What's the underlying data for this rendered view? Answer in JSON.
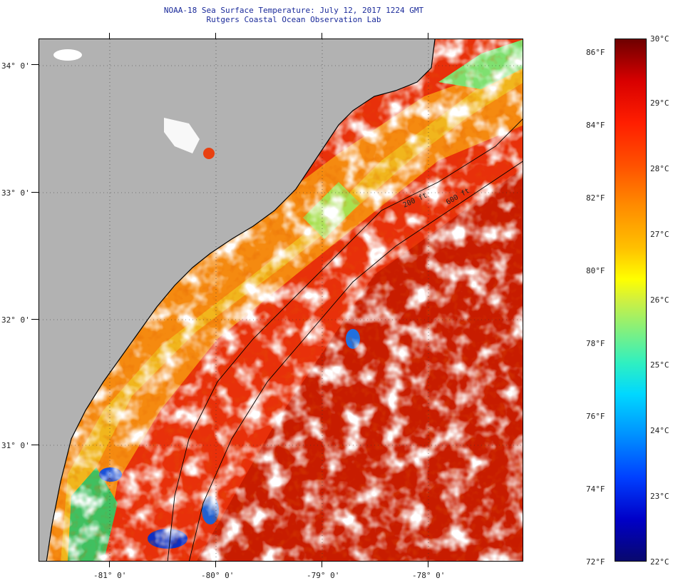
{
  "title": {
    "line1": "NOAA-18 Sea Surface Temperature:  July 12, 2017 1224 GMT",
    "line2": "Rutgers Coastal Ocean Observation Lab"
  },
  "map": {
    "latitude_labels": [
      "34° 0'",
      "33° 0'",
      "32° 0'",
      "31° 0'"
    ],
    "longitude_labels": [
      "-81° 0'",
      "-80° 0'",
      "-79° 0'",
      "-78° 0'"
    ],
    "isobath_labels": [
      "200 ft",
      "600 ft"
    ],
    "colors": {
      "land": "#b2b2b2",
      "cloud": "#ffffff",
      "coast_line": "#000000",
      "warm": "#e8300a",
      "hot": "#c01a00",
      "nearshore": "#f58a10",
      "cool": "#f0e030",
      "cold": "#20c070"
    }
  },
  "colorbar": {
    "fahrenheit_labels": [
      "86°F",
      "84°F",
      "82°F",
      "80°F",
      "78°F",
      "76°F",
      "74°F",
      "72°F"
    ],
    "celsius_labels": [
      "30°C",
      "29°C",
      "28°C",
      "27°C",
      "26°C",
      "25°C",
      "24°C",
      "23°C",
      "22°C"
    ]
  }
}
